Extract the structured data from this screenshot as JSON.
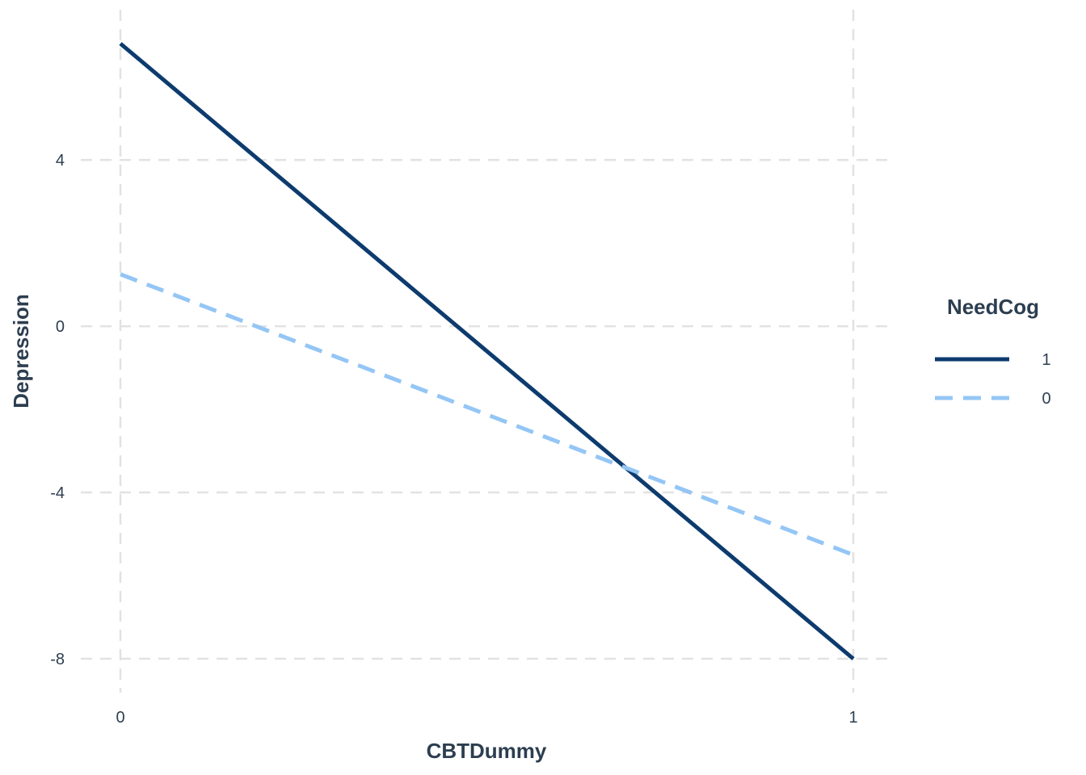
{
  "chart_data": {
    "type": "line",
    "xlabel": "CBTDummy",
    "ylabel": "Depression",
    "x": [
      0,
      1
    ],
    "x_ticks": [
      0,
      1
    ],
    "x_tick_labels": [
      "0",
      "1"
    ],
    "xlim": [
      0,
      1
    ],
    "y_ticks": [
      -8,
      -4,
      0,
      4
    ],
    "y_tick_labels": [
      "-8",
      "-4",
      "0",
      "4"
    ],
    "ylim": [
      -8,
      6.8
    ],
    "grid": true,
    "legend": {
      "title": "NeedCog",
      "placement": "right"
    },
    "series": [
      {
        "name": "1",
        "values": [
          6.8,
          -8.0
        ],
        "color": "#0d3b6e",
        "style": "solid"
      },
      {
        "name": "0",
        "values": [
          1.25,
          -5.5
        ],
        "color": "#94c6f5",
        "style": "dashed"
      }
    ]
  }
}
